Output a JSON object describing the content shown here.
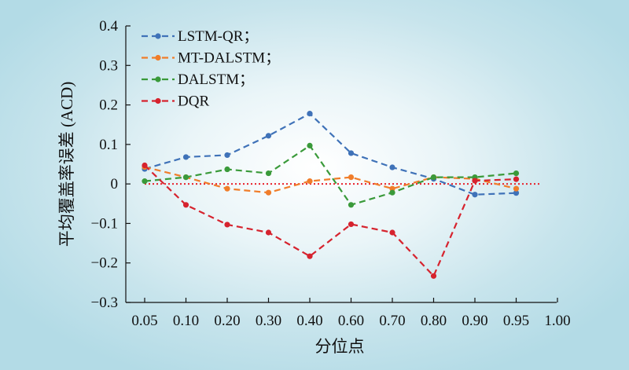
{
  "chart_data": {
    "type": "line",
    "xlabel": "分位点",
    "ylabel": "平均覆盖率误差 (ACD)",
    "x_tick_labels": [
      "0.05",
      "0.10",
      "0.20",
      "0.30",
      "0.40",
      "0.60",
      "0.70",
      "0.80",
      "0.90",
      "0.95",
      "1.00"
    ],
    "y_tick_labels": [
      "0.4",
      "0.3",
      "0.2",
      "0.1",
      "0",
      "−0.1",
      "−0.2",
      "−0.3"
    ],
    "ylim": [
      -0.3,
      0.4
    ],
    "grid": false,
    "legend_position": "top-left",
    "reference_line": {
      "y": 0,
      "style": "dotted",
      "color": "#e8202a"
    },
    "categories": [
      "0.05",
      "0.10",
      "0.20",
      "0.30",
      "0.40",
      "0.60",
      "0.70",
      "0.80",
      "0.90",
      "0.95"
    ],
    "series": [
      {
        "name": "LSTM-QR；",
        "color": "#3f72b8",
        "values": [
          0.038,
          0.068,
          0.073,
          0.122,
          0.178,
          0.078,
          0.042,
          0.013,
          -0.027,
          -0.023
        ]
      },
      {
        "name": "MT-DALSTM；",
        "color": "#f07d2a",
        "values": [
          0.043,
          0.017,
          -0.012,
          -0.022,
          0.007,
          0.017,
          -0.012,
          0.017,
          0.013,
          -0.012
        ]
      },
      {
        "name": "DALSTM；",
        "color": "#3a9a3a",
        "values": [
          0.007,
          0.017,
          0.037,
          0.027,
          0.097,
          -0.053,
          -0.022,
          0.017,
          0.017,
          0.027
        ]
      },
      {
        "name": "DQR",
        "color": "#d6232e",
        "values": [
          0.047,
          -0.053,
          -0.103,
          -0.123,
          -0.183,
          -0.102,
          -0.123,
          -0.233,
          0.008,
          0.012
        ]
      }
    ]
  }
}
